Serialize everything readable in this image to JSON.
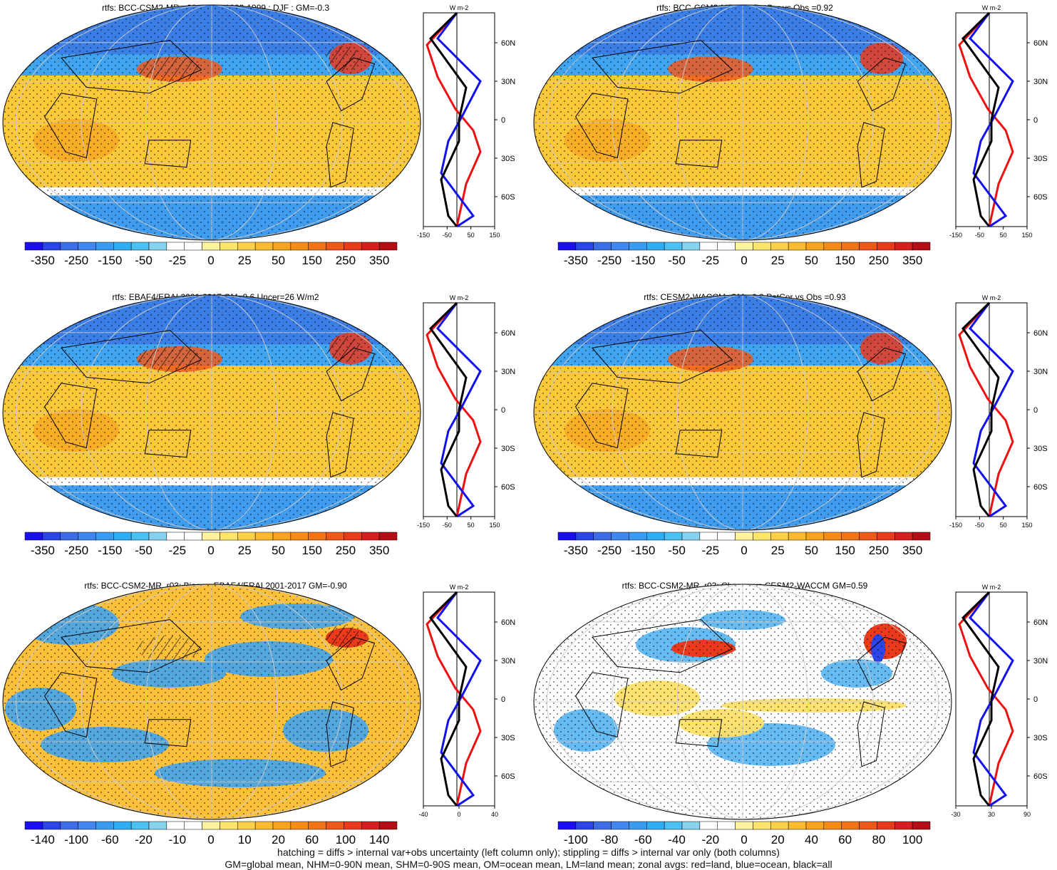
{
  "panels": [
    {
      "title": "rtfs: BCC-CSM2-MR_r03: Years 1980-1999 : DJF : GM=-0.3",
      "scale": "big",
      "zonal": {
        "xticks": [
          "-150",
          "-50",
          "50",
          "150"
        ],
        "unit": "W m-2",
        "series": [
          {
            "name": "land",
            "color": "#ee1111"
          },
          {
            "name": "ocean",
            "color": "#1111ee"
          },
          {
            "name": "all",
            "color": "#000000"
          }
        ]
      }
    },
    {
      "title": "rtfs: BCC-CSM2-MR_r03 PatCor vs Obs =0.92",
      "scale": "big",
      "zonal": {
        "xticks": [
          "-150",
          "-50",
          "50",
          "150"
        ],
        "unit": "W m-2",
        "series": [
          {
            "name": "land",
            "color": "#ee1111"
          },
          {
            "name": "ocean",
            "color": "#1111ee"
          },
          {
            "name": "all",
            "color": "#000000"
          }
        ]
      }
    },
    {
      "title": "rtfs: EBAF4/ERAI 2001-2017 GM=0.6 Uncer=26 W/m2",
      "scale": "big",
      "zonal": {
        "xticks": [
          "-150",
          "-50",
          "50",
          "150"
        ],
        "unit": "W m-2",
        "series": [
          {
            "name": "land",
            "color": "#ee1111"
          },
          {
            "name": "ocean",
            "color": "#1111ee"
          },
          {
            "name": "all",
            "color": "#000000"
          }
        ]
      }
    },
    {
      "title": "rtfs: CESM2-WACCM: GM=-0.9 PatCor vs Obs =0.93",
      "scale": "big",
      "zonal": {
        "xticks": [
          "-150",
          "-50",
          "50",
          "150"
        ],
        "unit": "W m-2",
        "series": [
          {
            "name": "land",
            "color": "#ee1111"
          },
          {
            "name": "ocean",
            "color": "#1111ee"
          },
          {
            "name": "all",
            "color": "#000000"
          }
        ]
      }
    },
    {
      "title": "rtfs: BCC-CSM2-MR_r03: Bias vs EBAF4/ERAI 2001-2017 GM=-0.90",
      "scale": "bias",
      "zonal": {
        "xticks": [
          "-40",
          "0",
          "40"
        ],
        "unit": "W m-2",
        "series": [
          {
            "name": "land",
            "color": "#ee1111"
          },
          {
            "name": "ocean",
            "color": "#1111ee"
          },
          {
            "name": "all",
            "color": "#000000"
          }
        ]
      }
    },
    {
      "title": "rtfs: BCC-CSM2-MR_r03: Change vs CESM2-WACCM GM=0.59",
      "scale": "change",
      "zonal": {
        "xticks": [
          "-30",
          "30",
          "90"
        ],
        "unit": "W m-2",
        "series": [
          {
            "name": "land",
            "color": "#ee1111"
          },
          {
            "name": "ocean",
            "color": "#1111ee"
          },
          {
            "name": "all",
            "color": "#000000"
          }
        ]
      }
    }
  ],
  "lat_ticks": [
    "60N",
    "30N",
    "0",
    "30S",
    "60S"
  ],
  "colorbars": {
    "big": {
      "labels": [
        "-350",
        "-250",
        "-150",
        "-50",
        "-25",
        "0",
        "25",
        "50",
        "150",
        "250",
        "350"
      ],
      "colors": [
        "#1a0ff0",
        "#2a45e8",
        "#3c6de6",
        "#3f86ee",
        "#3a9cf0",
        "#30aef5",
        "#4cc0f3",
        "#88d2f1",
        "#ffffff",
        "#ffffff",
        "#fff3a0",
        "#fde46a",
        "#fdd04a",
        "#fcba2e",
        "#f9a41e",
        "#f58c16",
        "#f27216",
        "#ee5818",
        "#ea3a1c",
        "#d71e1e",
        "#b40e14"
      ]
    },
    "bias": {
      "labels": [
        "-140",
        "-100",
        "-60",
        "-20",
        "-10",
        "0",
        "10",
        "20",
        "60",
        "100",
        "140"
      ],
      "colors": [
        "#1a0ff0",
        "#2a45e8",
        "#3c6de6",
        "#3f86ee",
        "#3a9cf0",
        "#30aef5",
        "#4cc0f3",
        "#88d2f1",
        "#ffffff",
        "#ffffff",
        "#fff3a0",
        "#fde46a",
        "#fdd04a",
        "#fcba2e",
        "#f9a41e",
        "#f58c16",
        "#f27216",
        "#ee5818",
        "#ea3a1c",
        "#d71e1e",
        "#b40e14"
      ]
    },
    "change": {
      "labels": [
        "-100",
        "-80",
        "-60",
        "-40",
        "-20",
        "0",
        "20",
        "40",
        "60",
        "80",
        "100"
      ],
      "colors": [
        "#1a0ff0",
        "#2a45e8",
        "#3c6de6",
        "#3f86ee",
        "#3a9cf0",
        "#30aef5",
        "#4cc0f3",
        "#88d2f1",
        "#ffffff",
        "#ffffff",
        "#fff3a0",
        "#fde46a",
        "#fdd04a",
        "#fcba2e",
        "#f9a41e",
        "#f58c16",
        "#f27216",
        "#ee5818",
        "#ea3a1c",
        "#d71e1e",
        "#b40e14"
      ]
    }
  },
  "footer": {
    "line1": "hatching = diffs > internal var+obs uncertainty (left column only); stippling = diffs > internal var only (both columns)",
    "line2": "GM=global mean, NHM=0-90N mean, SHM=0-90S mean, OM=ocean mean, LM=land mean; zonal avgs: red=land, blue=ocean, black=all"
  },
  "chart_data": [
    {
      "type": "heatmap",
      "title": "rtfs: BCC-CSM2-MR_r03: Years 1980-1999 : DJF : GM=-0.3",
      "colorbar": [
        "-350",
        "-250",
        "-150",
        "-50",
        "-25",
        "0",
        "25",
        "50",
        "150",
        "250",
        "350"
      ]
    },
    {
      "type": "line",
      "title": "",
      "orientation": "zonal mean vs latitude",
      "xlim": [
        -150,
        150
      ],
      "ylim": [
        -90,
        90
      ],
      "xticks": [
        -150,
        -50,
        50,
        150
      ],
      "yticks": [
        "60N",
        "30N",
        "0",
        "30S",
        "60S"
      ],
      "series": [
        {
          "name": "land"
        },
        {
          "name": "ocean"
        },
        {
          "name": "all"
        }
      ]
    },
    {
      "type": "heatmap",
      "title": "rtfs: BCC-CSM2-MR_r03 PatCor vs Obs =0.92",
      "colorbar": [
        "-350",
        "-250",
        "-150",
        "-50",
        "-25",
        "0",
        "25",
        "50",
        "150",
        "250",
        "350"
      ]
    },
    {
      "type": "heatmap",
      "title": "rtfs: EBAF4/ERAI 2001-2017 GM=0.6 Uncer=26 W/m2",
      "colorbar": [
        "-350",
        "-250",
        "-150",
        "-50",
        "-25",
        "0",
        "25",
        "50",
        "150",
        "250",
        "350"
      ]
    },
    {
      "type": "heatmap",
      "title": "rtfs: CESM2-WACCM: GM=-0.9 PatCor vs Obs =0.93",
      "colorbar": [
        "-350",
        "-250",
        "-150",
        "-50",
        "-25",
        "0",
        "25",
        "50",
        "150",
        "250",
        "350"
      ]
    },
    {
      "type": "heatmap",
      "title": "rtfs: BCC-CSM2-MR_r03: Bias vs EBAF4/ERAI 2001-2017 GM=-0.90",
      "colorbar": [
        "-140",
        "-100",
        "-60",
        "-20",
        "-10",
        "0",
        "10",
        "20",
        "60",
        "100",
        "140"
      ]
    },
    {
      "type": "heatmap",
      "title": "rtfs: BCC-CSM2-MR_r03: Change vs CESM2-WACCM GM=0.59",
      "colorbar": [
        "-100",
        "-80",
        "-60",
        "-40",
        "-20",
        "0",
        "20",
        "40",
        "60",
        "80",
        "100"
      ]
    }
  ]
}
